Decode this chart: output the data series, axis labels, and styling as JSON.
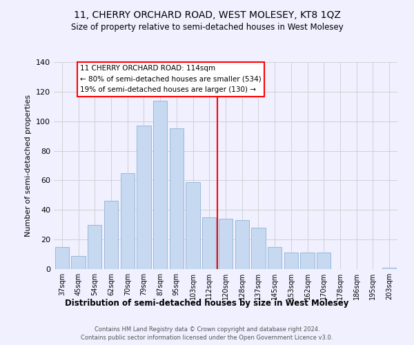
{
  "title": "11, CHERRY ORCHARD ROAD, WEST MOLESEY, KT8 1QZ",
  "subtitle": "Size of property relative to semi-detached houses in West Molesey",
  "xlabel": "Distribution of semi-detached houses by size in West Molesey",
  "ylabel": "Number of semi-detached properties",
  "bar_labels": [
    "37sqm",
    "45sqm",
    "54sqm",
    "62sqm",
    "70sqm",
    "79sqm",
    "87sqm",
    "95sqm",
    "103sqm",
    "112sqm",
    "120sqm",
    "128sqm",
    "137sqm",
    "145sqm",
    "153sqm",
    "162sqm",
    "170sqm",
    "178sqm",
    "186sqm",
    "195sqm",
    "203sqm"
  ],
  "bar_values": [
    15,
    9,
    30,
    46,
    65,
    97,
    114,
    95,
    59,
    35,
    34,
    33,
    28,
    15,
    11,
    11,
    11,
    0,
    0,
    0,
    1
  ],
  "bar_color": "#c6d9f1",
  "bar_edge_color": "#9ab8d8",
  "annotation_text_line1": "11 CHERRY ORCHARD ROAD: 114sqm",
  "annotation_text_line2": "← 80% of semi-detached houses are smaller (534)",
  "annotation_text_line3": "19% of semi-detached houses are larger (130) →",
  "ylim": [
    0,
    140
  ],
  "yticks": [
    0,
    20,
    40,
    60,
    80,
    100,
    120,
    140
  ],
  "footer_line1": "Contains HM Land Registry data © Crown copyright and database right 2024.",
  "footer_line2": "Contains public sector information licensed under the Open Government Licence v3.0.",
  "background_color": "#f0f0ff"
}
